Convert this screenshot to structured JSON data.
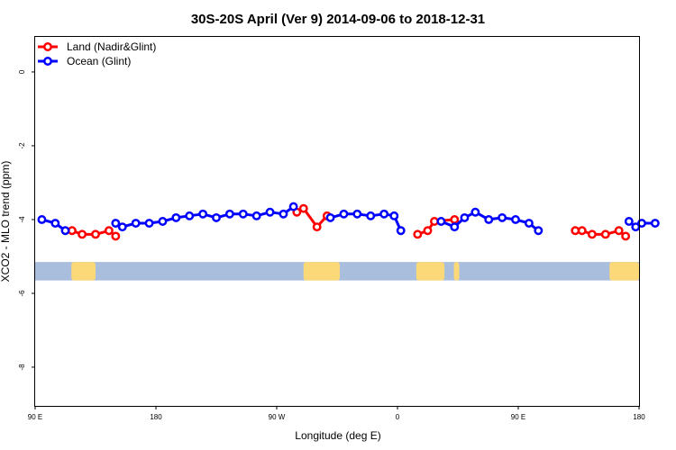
{
  "chart_data": {
    "type": "line",
    "title": "30S-20S April (Ver 9)   2014-09-06 to 2018-12-31",
    "xlabel": "Longitude (deg E)",
    "ylabel": "XCO2 - MLO trend (ppm)",
    "xlim": [
      90,
      540
    ],
    "ylim": [
      -9.05,
      0.95
    ],
    "x_ticks": [
      {
        "value": 90,
        "label": "90 E"
      },
      {
        "value": 180,
        "label": "180"
      },
      {
        "value": 270,
        "label": "90 W"
      },
      {
        "value": 360,
        "label": "0"
      },
      {
        "value": 450,
        "label": "90 E"
      },
      {
        "value": 540,
        "label": "180"
      }
    ],
    "y_ticks": [
      {
        "value": 0,
        "label": "0"
      },
      {
        "value": -2,
        "label": "-2"
      },
      {
        "value": -4,
        "label": "-4"
      },
      {
        "value": -6,
        "label": "-6"
      },
      {
        "value": -8,
        "label": "-8"
      }
    ],
    "legend_position": "top-left",
    "grid": false,
    "map_strip": {
      "y_range": [
        -5.65,
        -5.15
      ],
      "ocean_color": "#a9bedc",
      "land_color": "#fbd878",
      "land_x_ranges": [
        [
          117,
          135
        ],
        [
          290,
          317
        ],
        [
          374,
          395
        ],
        [
          402,
          406
        ],
        [
          518,
          548
        ]
      ]
    },
    "series": [
      {
        "name": "Land (Nadir&Glint)",
        "color": "#ff0000",
        "segments": [
          [
            [
              117.5,
              -4.3
            ],
            [
              125,
              -4.4
            ],
            [
              135,
              -4.4
            ],
            [
              145,
              -4.3
            ],
            [
              150,
              -4.45
            ]
          ],
          [
            [
              285,
              -3.8
            ],
            [
              290,
              -3.7
            ],
            [
              300,
              -4.2
            ],
            [
              307.5,
              -3.9
            ]
          ],
          [
            [
              375,
              -4.4
            ],
            [
              382.5,
              -4.3
            ],
            [
              387.5,
              -4.05
            ],
            [
              402.5,
              -4.0
            ]
          ],
          [
            [
              492.5,
              -4.3
            ],
            [
              497.5,
              -4.3
            ],
            [
              505,
              -4.4
            ],
            [
              515,
              -4.4
            ],
            [
              525,
              -4.3
            ],
            [
              530,
              -4.45
            ]
          ]
        ]
      },
      {
        "name": "Ocean (Glint)",
        "color": "#0000ff",
        "segments": [
          [
            [
              95,
              -4.0
            ],
            [
              105,
              -4.1
            ],
            [
              112.5,
              -4.3
            ]
          ],
          [
            [
              150,
              -4.1
            ],
            [
              155,
              -4.2
            ],
            [
              165,
              -4.1
            ],
            [
              175,
              -4.1
            ],
            [
              185,
              -4.05
            ],
            [
              195,
              -3.95
            ],
            [
              205,
              -3.9
            ],
            [
              215,
              -3.85
            ],
            [
              225,
              -3.95
            ],
            [
              235,
              -3.85
            ],
            [
              245,
              -3.85
            ],
            [
              255,
              -3.9
            ],
            [
              265,
              -3.8
            ],
            [
              275,
              -3.85
            ],
            [
              282.5,
              -3.65
            ]
          ],
          [
            [
              310,
              -3.95
            ],
            [
              320,
              -3.85
            ],
            [
              330,
              -3.85
            ],
            [
              340,
              -3.9
            ],
            [
              350,
              -3.85
            ],
            [
              357.5,
              -3.9
            ],
            [
              362.5,
              -4.3
            ]
          ],
          [
            [
              392.5,
              -4.05
            ],
            [
              402.5,
              -4.2
            ],
            [
              410,
              -3.95
            ],
            [
              418,
              -3.8
            ],
            [
              428,
              -4.0
            ],
            [
              438,
              -3.95
            ],
            [
              448,
              -4.0
            ],
            [
              458,
              -4.1
            ],
            [
              465,
              -4.3
            ]
          ],
          [
            [
              532.5,
              -4.05
            ],
            [
              537.5,
              -4.2
            ],
            [
              542,
              -4.1
            ],
            [
              552,
              -4.1
            ]
          ]
        ]
      }
    ]
  }
}
